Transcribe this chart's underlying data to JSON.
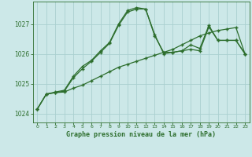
{
  "title": "Graphe pression niveau de la mer (hPa)",
  "background_color": "#cce8e8",
  "grid_color": "#aad0d0",
  "line_color": "#2d6e2d",
  "marker": "+",
  "xlim": [
    -0.5,
    23.5
  ],
  "ylim": [
    1023.7,
    1027.75
  ],
  "yticks": [
    1024,
    1025,
    1026,
    1027
  ],
  "xticks": [
    0,
    1,
    2,
    3,
    4,
    5,
    6,
    7,
    8,
    9,
    10,
    11,
    12,
    13,
    14,
    15,
    16,
    17,
    18,
    19,
    20,
    21,
    22,
    23
  ],
  "series": {
    "line1": {
      "x": [
        0,
        1,
        2,
        3,
        4,
        5,
        6,
        7,
        8,
        9,
        10,
        11,
        12,
        13,
        14,
        15,
        16,
        17,
        18,
        19,
        20,
        21,
        22,
        23
      ],
      "y": [
        1024.15,
        1024.65,
        1024.7,
        1024.72,
        1024.85,
        1024.95,
        1025.1,
        1025.25,
        1025.4,
        1025.55,
        1025.65,
        1025.75,
        1025.85,
        1025.95,
        1026.05,
        1026.15,
        1026.3,
        1026.45,
        1026.6,
        1026.7,
        1026.78,
        1026.83,
        1026.88,
        1026.0
      ]
    },
    "line2": {
      "x": [
        0,
        1,
        2,
        3,
        4,
        5,
        6,
        7,
        8,
        9,
        10,
        11,
        12,
        13,
        14,
        15,
        16,
        17,
        18,
        19,
        20,
        21,
        22,
        23
      ],
      "y": [
        1024.15,
        1024.65,
        1024.7,
        1024.75,
        1025.2,
        1025.5,
        1025.75,
        1026.05,
        1026.35,
        1026.95,
        1027.4,
        1027.5,
        1027.5,
        1026.6,
        1026.05,
        1026.05,
        1026.1,
        1026.15,
        1026.1,
        1026.9,
        1026.45,
        1026.45,
        1026.45,
        1026.0
      ]
    },
    "line3": {
      "x": [
        0,
        1,
        2,
        3,
        4,
        5,
        6,
        7,
        8,
        9,
        10,
        11,
        12,
        13,
        14,
        15,
        16,
        17,
        18,
        19,
        20,
        21,
        22,
        23
      ],
      "y": [
        1024.15,
        1024.65,
        1024.72,
        1024.78,
        1025.25,
        1025.58,
        1025.78,
        1026.1,
        1026.38,
        1027.0,
        1027.45,
        1027.55,
        1027.5,
        1026.65,
        1026.0,
        1026.05,
        1026.1,
        1026.3,
        1026.18,
        1026.95,
        1026.45,
        1026.45,
        1026.45,
        1026.0
      ]
    }
  },
  "figsize": [
    3.2,
    2.0
  ],
  "dpi": 100
}
